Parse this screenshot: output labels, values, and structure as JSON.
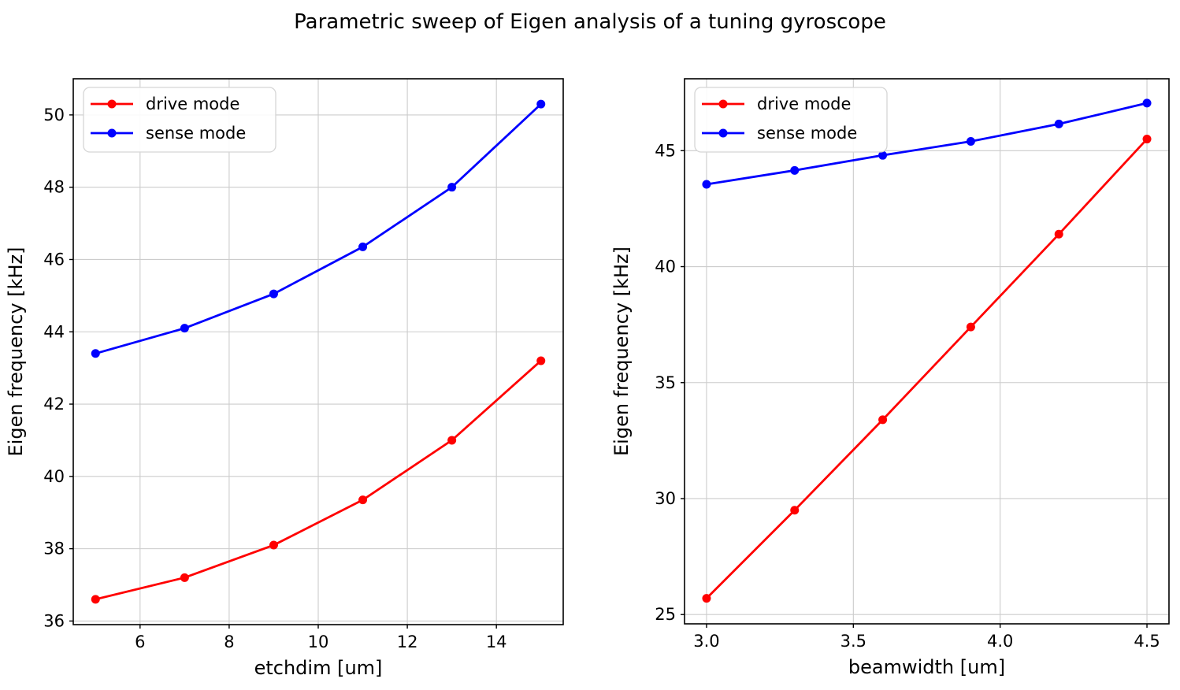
{
  "figure": {
    "title": "Parametric sweep of Eigen analysis of a tuning gyroscope"
  },
  "colors": {
    "drive": "#ff0000",
    "sense": "#0000ff",
    "grid": "#cccccc",
    "spine": "#000000",
    "text": "#000000",
    "legend_border": "#d5d5d5",
    "legend_fill": "#ffffff"
  },
  "chart_data": [
    {
      "id": "etchdim-sweep",
      "type": "line",
      "title": "",
      "xlabel": "etchdim [um]",
      "ylabel": "Eigen frequency [kHz]",
      "x": [
        5,
        7,
        9,
        11,
        13,
        15
      ],
      "series": [
        {
          "name": "drive mode",
          "color": "#ff0000",
          "values": [
            36.6,
            37.2,
            38.1,
            39.35,
            41.0,
            43.2
          ]
        },
        {
          "name": "sense mode",
          "color": "#0000ff",
          "values": [
            43.4,
            44.1,
            45.05,
            46.35,
            48.0,
            50.3
          ]
        }
      ],
      "xlim": [
        4.5,
        15.5
      ],
      "ylim": [
        35.9,
        51.0
      ],
      "xticks": [
        6,
        8,
        10,
        12,
        14
      ],
      "xtick_labels": [
        "6",
        "8",
        "10",
        "12",
        "14"
      ],
      "yticks": [
        36,
        38,
        40,
        42,
        44,
        46,
        48,
        50
      ],
      "ytick_labels": [
        "36",
        "38",
        "40",
        "42",
        "44",
        "46",
        "48",
        "50"
      ],
      "grid": true,
      "legend_position": "upper left",
      "legend_entries": [
        "drive mode",
        "sense mode"
      ]
    },
    {
      "id": "beamwidth-sweep",
      "type": "line",
      "title": "",
      "xlabel": "beamwidth [um]",
      "ylabel": "Eigen frequency [kHz]",
      "x": [
        3.0,
        3.3,
        3.6,
        3.9,
        4.2,
        4.5
      ],
      "series": [
        {
          "name": "drive mode",
          "color": "#ff0000",
          "values": [
            25.7,
            29.5,
            33.4,
            37.4,
            41.4,
            45.5
          ]
        },
        {
          "name": "sense mode",
          "color": "#0000ff",
          "values": [
            43.55,
            44.15,
            44.8,
            45.4,
            46.15,
            47.05
          ]
        }
      ],
      "xlim": [
        2.925,
        4.575
      ],
      "ylim": [
        24.6,
        48.1
      ],
      "xticks": [
        3.0,
        3.5,
        4.0,
        4.5
      ],
      "xtick_labels": [
        "3.0",
        "3.5",
        "4.0",
        "4.5"
      ],
      "yticks": [
        25,
        30,
        35,
        40,
        45
      ],
      "ytick_labels": [
        "25",
        "30",
        "35",
        "40",
        "45"
      ],
      "grid": true,
      "legend_position": "upper left",
      "legend_entries": [
        "drive mode",
        "sense mode"
      ]
    }
  ]
}
